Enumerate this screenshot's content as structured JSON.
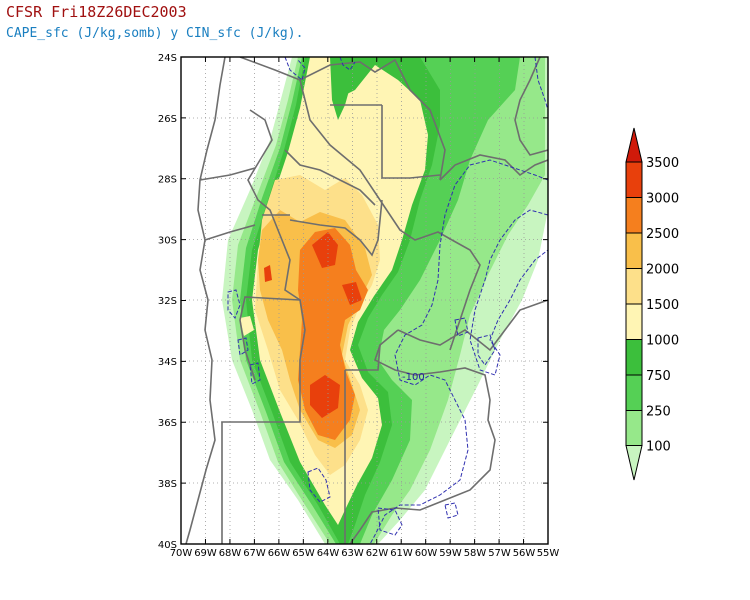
{
  "header": {
    "title": "CFSR Fri18Z26DEC2003",
    "subtitle": "CAPE_sfc (J/kg,somb) y CIN_sfc (J/kg)."
  },
  "map": {
    "lon_ticks": [
      "70W",
      "69W",
      "68W",
      "67W",
      "66W",
      "65W",
      "64W",
      "63W",
      "62W",
      "61W",
      "60W",
      "59W",
      "58W",
      "57W",
      "56W",
      "55W"
    ],
    "lat_ticks": [
      "24S",
      "26S",
      "28S",
      "30S",
      "32S",
      "34S",
      "36S",
      "38S",
      "40S"
    ],
    "contour_label": "-100",
    "colors": {
      "c100": "#c8f5c0",
      "c250": "#96e88a",
      "c750": "#55d055",
      "c1000": "#3cbf3c",
      "c1500": "#fff5b4",
      "c2000": "#fde08a",
      "c2500": "#f9bf4a",
      "c3000": "#f57f1e",
      "c3500": "#e8400c",
      "c3500plus": "#d01a0a",
      "cin_contour": "#3030b0",
      "borders": "#6e6e6e"
    }
  },
  "legend": {
    "labels": [
      "3500",
      "3000",
      "2500",
      "2000",
      "1500",
      "1000",
      "750",
      "250",
      "100"
    ]
  }
}
